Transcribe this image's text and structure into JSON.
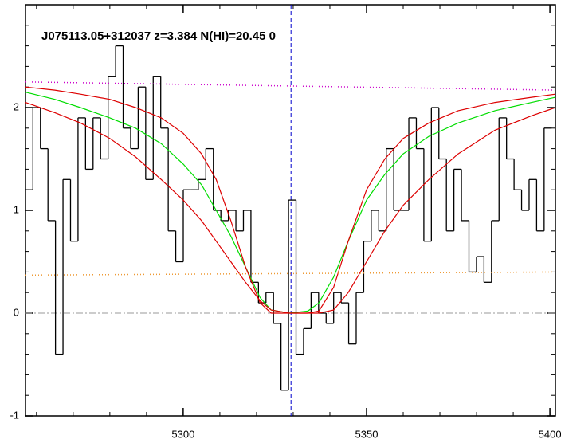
{
  "chart_data": {
    "type": "line",
    "title": "J075113.05+312037 z=3.384 N(HI)=20.45 0",
    "xlim": [
      5257,
      5401.5
    ],
    "ylim": [
      -1,
      3
    ],
    "xticks": [
      5300,
      5350,
      5400
    ],
    "yticks": [
      -1,
      0,
      1,
      2
    ],
    "vline": 5329.4,
    "hline": 0,
    "series": [
      {
        "color": "#000000",
        "style": "step",
        "x": [
          5258.0,
          5260.05,
          5262.1,
          5264.15,
          5266.2,
          5268.25,
          5270.3,
          5272.35,
          5274.4,
          5276.45,
          5278.5,
          5280.55,
          5282.6,
          5284.65,
          5286.7,
          5288.75,
          5290.8,
          5292.85,
          5294.9,
          5296.95,
          5299.0,
          5301.05,
          5303.1,
          5305.15,
          5307.2,
          5309.25,
          5311.3,
          5313.35,
          5315.4,
          5317.45,
          5319.5,
          5321.55,
          5323.6,
          5325.65,
          5327.7,
          5329.75,
          5331.8,
          5333.85,
          5335.9,
          5337.95,
          5340.0,
          5342.05,
          5344.1,
          5346.15,
          5348.2,
          5350.25,
          5352.3,
          5354.35,
          5356.4,
          5358.45,
          5360.5,
          5362.55,
          5364.6,
          5366.65,
          5368.7,
          5370.75,
          5372.8,
          5374.85,
          5376.9,
          5378.95,
          5381.0,
          5383.05,
          5385.1,
          5387.15,
          5389.2,
          5391.25,
          5393.3,
          5395.35,
          5397.4,
          5399.45
        ],
        "values": [
          1.2,
          2.0,
          1.6,
          0.9,
          -0.4,
          1.3,
          0.7,
          1.9,
          1.4,
          1.9,
          1.5,
          2.3,
          2.6,
          1.8,
          1.6,
          2.2,
          1.3,
          2.3,
          1.8,
          0.8,
          0.5,
          1.2,
          1.2,
          1.3,
          1.6,
          1.0,
          0.9,
          1.0,
          0.8,
          1.0,
          0.3,
          0.1,
          0.2,
          -0.1,
          -0.75,
          1.1,
          -0.4,
          -0.15,
          0.2,
          0.0,
          -0.1,
          0.2,
          0.1,
          -0.3,
          0.2,
          0.7,
          1.0,
          0.8,
          1.6,
          1.0,
          1.0,
          1.9,
          1.6,
          0.7,
          2.0,
          1.5,
          0.8,
          1.4,
          0.9,
          0.4,
          0.55,
          0.3,
          0.9,
          1.9,
          1.5,
          1.2,
          1.0,
          1.3,
          0.8,
          1.8
        ]
      },
      {
        "color": "#00dd00",
        "style": "solid",
        "x": [
          5257,
          5265,
          5272,
          5280,
          5287,
          5294,
          5300,
          5305,
          5309,
          5313,
          5317,
          5321,
          5324,
          5329,
          5334,
          5337,
          5341,
          5345,
          5350,
          5355,
          5360,
          5367,
          5375,
          5385,
          5395,
          5401.5
        ],
        "values": [
          2.15,
          2.08,
          2.0,
          1.9,
          1.8,
          1.65,
          1.45,
          1.25,
          1.0,
          0.75,
          0.45,
          0.15,
          0.03,
          0,
          0.02,
          0.1,
          0.35,
          0.7,
          1.1,
          1.35,
          1.55,
          1.72,
          1.85,
          1.97,
          2.05,
          2.1
        ]
      },
      {
        "color": "#dd0000",
        "style": "solid",
        "x": [
          5257,
          5265,
          5272,
          5280,
          5287,
          5294,
          5300,
          5305,
          5309,
          5313,
          5317,
          5321,
          5324,
          5329,
          5334,
          5337,
          5341,
          5345,
          5350,
          5355,
          5360,
          5367,
          5375,
          5385,
          5395,
          5401.5
        ],
        "values": [
          2.2,
          2.17,
          2.13,
          2.08,
          2.0,
          1.9,
          1.75,
          1.55,
          1.3,
          0.9,
          0.45,
          0.1,
          0,
          0,
          0,
          0.02,
          0.25,
          0.7,
          1.2,
          1.5,
          1.7,
          1.85,
          1.97,
          2.05,
          2.1,
          2.13
        ]
      },
      {
        "color": "#dd0000",
        "style": "solid",
        "x": [
          5257,
          5265,
          5272,
          5280,
          5287,
          5294,
          5300,
          5305,
          5309,
          5313,
          5317,
          5321,
          5324,
          5329,
          5334,
          5337,
          5341,
          5345,
          5350,
          5355,
          5360,
          5367,
          5375,
          5385,
          5395,
          5401.5
        ],
        "values": [
          2.05,
          1.95,
          1.85,
          1.7,
          1.52,
          1.3,
          1.1,
          0.9,
          0.7,
          0.5,
          0.3,
          0.12,
          0.03,
          0,
          0,
          0,
          0.03,
          0.2,
          0.5,
          0.8,
          1.05,
          1.3,
          1.55,
          1.78,
          1.92,
          2.0
        ]
      },
      {
        "color": "#cc00cc",
        "style": "dotted",
        "x": [
          5257,
          5401.5
        ],
        "values": [
          2.25,
          2.17
        ]
      },
      {
        "color": "#ee9933",
        "style": "dotted",
        "x": [
          5257,
          5401.5
        ],
        "values": [
          0.37,
          0.4
        ]
      }
    ]
  }
}
